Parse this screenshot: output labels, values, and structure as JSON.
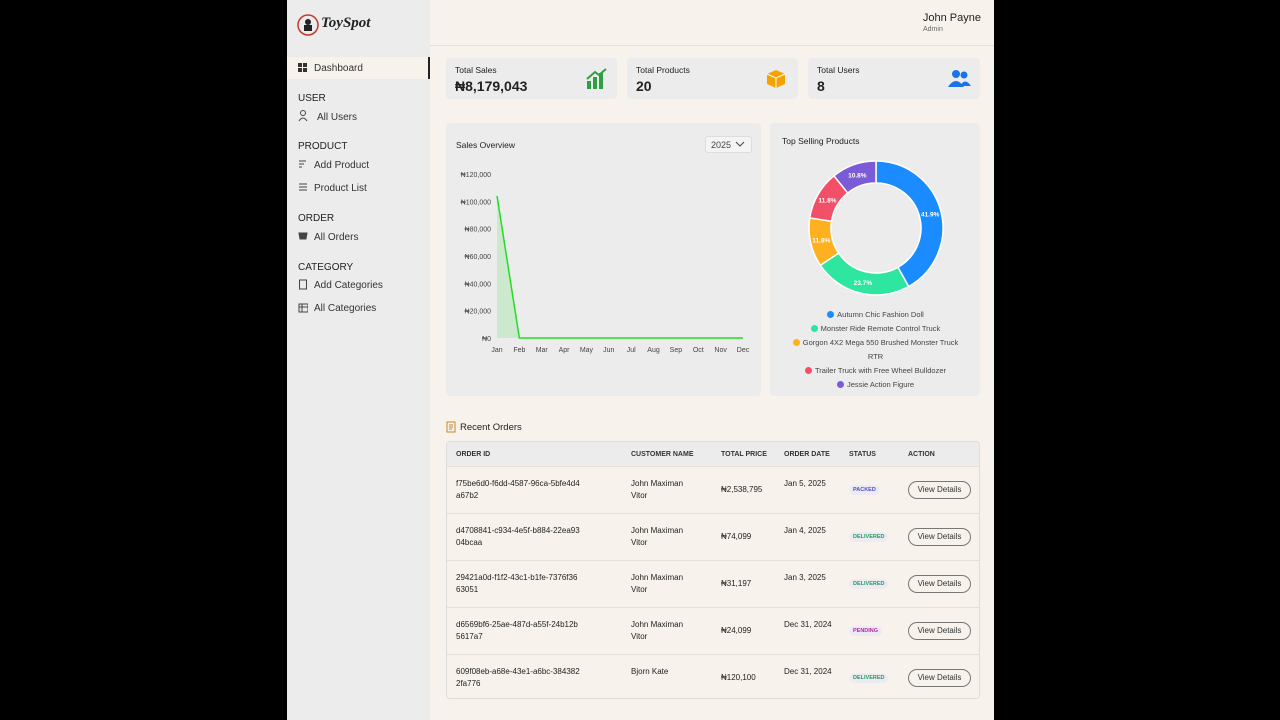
{
  "brand": "ToySpot",
  "user": {
    "name": "John Payne",
    "role": "Admin"
  },
  "sidebar": {
    "active": "Dashboard",
    "sections": [
      {
        "title": "USER",
        "items": [
          "All Users"
        ]
      },
      {
        "title": "PRODUCT",
        "items": [
          "Add Product",
          "Product List"
        ]
      },
      {
        "title": "ORDER",
        "items": [
          "All Orders"
        ]
      },
      {
        "title": "CATEGORY",
        "items": [
          "Add Categories",
          "All Categories"
        ]
      }
    ]
  },
  "stats": [
    {
      "label": "Total Sales",
      "value": "₦8,179,043"
    },
    {
      "label": "Total Products",
      "value": "20"
    },
    {
      "label": "Total Users",
      "value": "8"
    }
  ],
  "chart_data": [
    {
      "type": "line",
      "title": "Sales Overview",
      "year": "2025",
      "categories": [
        "Jan",
        "Feb",
        "Mar",
        "Apr",
        "May",
        "Jun",
        "Jul",
        "Aug",
        "Sep",
        "Oct",
        "Nov",
        "Dec"
      ],
      "values": [
        104000,
        0,
        0,
        0,
        0,
        0,
        0,
        0,
        0,
        0,
        0,
        0
      ],
      "color": "#22dd22",
      "ylim": [
        0,
        120000
      ],
      "yticks": [
        {
          "value": 0,
          "label": "₦0"
        },
        {
          "value": 20000,
          "label": "₦20,000"
        },
        {
          "value": 40000,
          "label": "₦40,000"
        },
        {
          "value": 60000,
          "label": "₦60,000"
        },
        {
          "value": 80000,
          "label": "₦80,000"
        },
        {
          "value": 100000,
          "label": "₦100,000"
        },
        {
          "value": 120000,
          "label": "₦120,000"
        }
      ]
    },
    {
      "type": "pie",
      "title": "Top Selling Products",
      "categories": [
        "Autumn Chic Fashion Doll",
        "Monster Ride Remote Control Truck",
        "Gorgon 4X2 Mega 550 Brushed Monster Truck RTR",
        "Trailer Truck with Free Wheel Bulldozer",
        "Jessie Action Figure"
      ],
      "values": [
        41.9,
        23.7,
        11.8,
        11.8,
        10.8
      ],
      "value_labels": [
        "41.9%",
        "23.7%",
        "11.8%",
        "11.8%",
        "10.8%"
      ],
      "colors": [
        "#1a8cff",
        "#2ee6a0",
        "#ffb01f",
        "#f24f68",
        "#7b5bd6"
      ]
    }
  ],
  "orders": {
    "title": "Recent Orders",
    "columns": [
      "ORDER ID",
      "CUSTOMER NAME",
      "TOTAL PRICE",
      "ORDER DATE",
      "STATUS",
      "ACTION"
    ],
    "action_label": "View Details",
    "rows": [
      {
        "order_id": "f75be6d0-f6dd-4587-96ca-5bfe4d4a67b2",
        "customer": "John Maximan Vitor",
        "total": "₦2,538,795",
        "date": "Jan 5, 2025",
        "status": "PACKED",
        "status_color": "#4a4fc4"
      },
      {
        "order_id": "d4708841-c934-4e5f-b884-22ea9304bcaa",
        "customer": "John Maximan Vitor",
        "total": "₦74,099",
        "date": "Jan 4, 2025",
        "status": "DELIVERED",
        "status_color": "#1e9e5a"
      },
      {
        "order_id": "29421a0d-f1f2-43c1-b1fe-7376f3663051",
        "customer": "John Maximan Vitor",
        "total": "₦31,197",
        "date": "Jan 3, 2025",
        "status": "DELIVERED",
        "status_color": "#1e9e5a"
      },
      {
        "order_id": "d6569bf6-25ae-487d-a55f-24b12b5617a7",
        "customer": "John Maximan Vitor",
        "total": "₦24,099",
        "date": "Dec 31, 2024",
        "status": "PENDING",
        "status_color": "#b02aa6"
      },
      {
        "order_id": "609f08eb-a68e-43e1-a6bc-3843822fa776",
        "customer": "Bjorn Kate",
        "total": "₦120,100",
        "date": "Dec 31, 2024",
        "status": "DELIVERED",
        "status_color": "#1e9e5a"
      }
    ]
  }
}
